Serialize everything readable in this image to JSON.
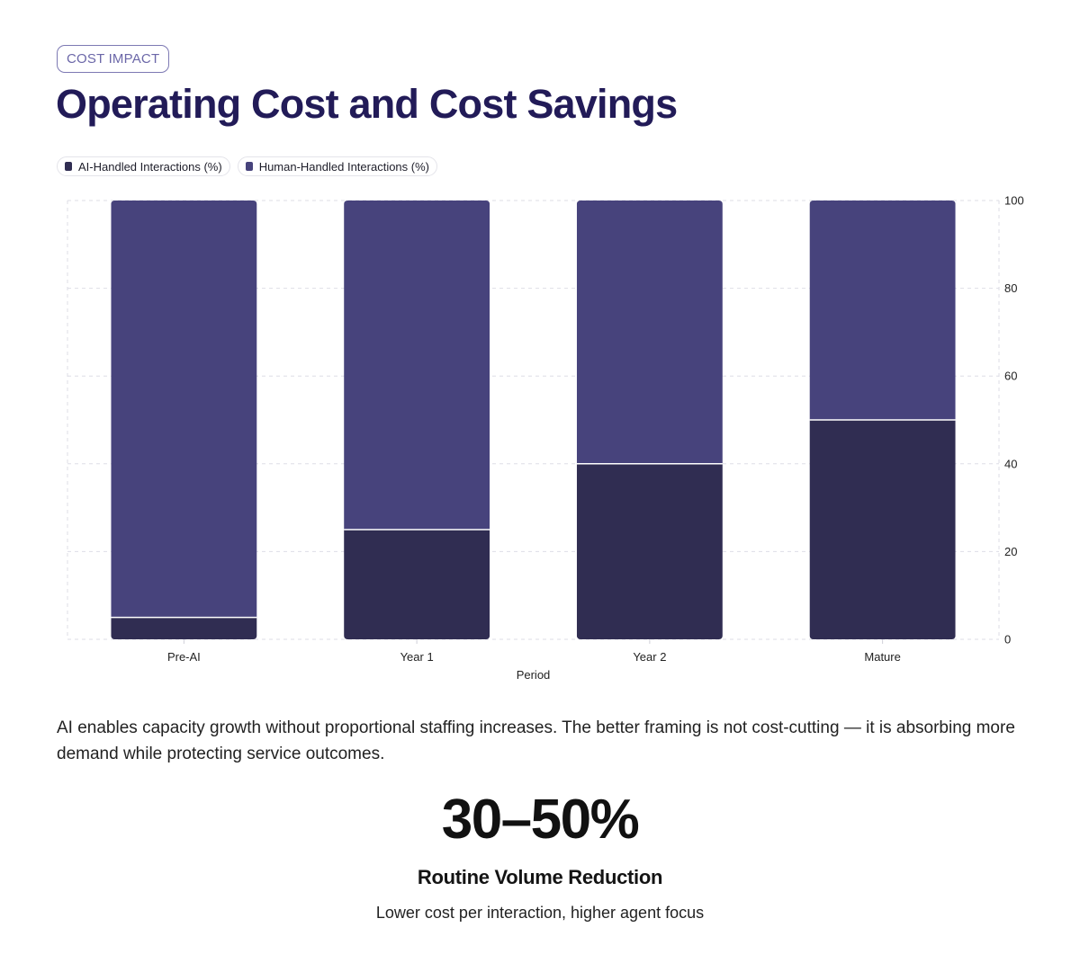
{
  "badge": "COST IMPACT",
  "title": "Operating Cost and Cost Savings",
  "colors": {
    "ai": "#302d52",
    "human": "#47437c",
    "accent": "#221b58"
  },
  "chart_data": {
    "type": "bar",
    "stacked": true,
    "categories": [
      "Pre-AI",
      "Year 1",
      "Year 2",
      "Mature"
    ],
    "series": [
      {
        "name": "AI-Handled Interactions (%)",
        "values": [
          5,
          25,
          40,
          50
        ]
      },
      {
        "name": "Human-Handled Interactions (%)",
        "values": [
          95,
          75,
          60,
          50
        ]
      }
    ],
    "xlabel": "Period",
    "ylabel": "",
    "ylim": [
      0,
      100
    ],
    "yticks": [
      0,
      20,
      40,
      60,
      80,
      100
    ],
    "y_axis_side": "right",
    "grid": true,
    "legend_position": "top-left"
  },
  "description": "AI enables capacity growth without proportional staffing increases. The better framing is not cost-cutting — it is absorbing more demand while protecting service outcomes.",
  "stat": {
    "value": "30–50%",
    "label": "Routine Volume Reduction",
    "sublabel": "Lower cost per interaction, higher agent focus"
  }
}
